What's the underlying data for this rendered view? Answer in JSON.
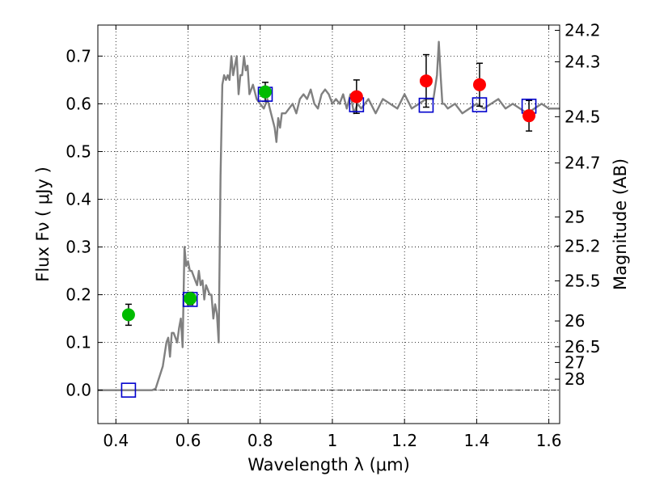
{
  "chart_data": {
    "type": "scatter",
    "xlabel": "Wavelength  λ (μm)",
    "ylabel": "Flux  Fν  ( μJy )",
    "y2label": "Magnitude (AB)",
    "xlim": [
      0.35,
      1.63
    ],
    "ylim": [
      -0.07,
      0.765
    ],
    "x_ticks": [
      {
        "value": 0.4,
        "label": "0.4"
      },
      {
        "value": 0.6,
        "label": "0.6"
      },
      {
        "value": 0.8,
        "label": "0.8"
      },
      {
        "value": 1.0,
        "label": "1"
      },
      {
        "value": 1.2,
        "label": "1.2"
      },
      {
        "value": 1.4,
        "label": "1.4"
      },
      {
        "value": 1.6,
        "label": "1.6"
      }
    ],
    "y_ticks": [
      {
        "value": 0.0,
        "label": "0.0"
      },
      {
        "value": 0.1,
        "label": "0.1"
      },
      {
        "value": 0.2,
        "label": "0.2"
      },
      {
        "value": 0.3,
        "label": "0.3"
      },
      {
        "value": 0.4,
        "label": "0.4"
      },
      {
        "value": 0.5,
        "label": "0.5"
      },
      {
        "value": 0.6,
        "label": "0.6"
      },
      {
        "value": 0.7,
        "label": "0.7"
      }
    ],
    "y2_ticks": [
      {
        "flux": 0.754,
        "label": "24.2"
      },
      {
        "flux": 0.688,
        "label": "24.3"
      },
      {
        "flux": 0.573,
        "label": "24.5"
      },
      {
        "flux": 0.476,
        "label": "24.7"
      },
      {
        "flux": 0.363,
        "label": "25"
      },
      {
        "flux": 0.302,
        "label": "25.2"
      },
      {
        "flux": 0.229,
        "label": "25.5"
      },
      {
        "flux": 0.145,
        "label": "26"
      },
      {
        "flux": 0.091,
        "label": "26.5"
      },
      {
        "flux": 0.058,
        "label": "27"
      },
      {
        "flux": 0.023,
        "label": "28"
      }
    ],
    "grid": true,
    "zero_line": true,
    "colors": {
      "template": "#808080",
      "green_points": "#00bb00",
      "red_points": "#ff0000",
      "model_squares": "#0000cc",
      "error_bars": "#000000"
    },
    "template_spectrum": {
      "x": [
        0.35,
        0.5,
        0.51,
        0.53,
        0.54,
        0.545,
        0.55,
        0.555,
        0.56,
        0.565,
        0.57,
        0.575,
        0.58,
        0.585,
        0.59,
        0.595,
        0.6,
        0.605,
        0.61,
        0.615,
        0.62,
        0.625,
        0.63,
        0.635,
        0.64,
        0.645,
        0.65,
        0.655,
        0.66,
        0.665,
        0.67,
        0.675,
        0.68,
        0.685,
        0.69,
        0.695,
        0.7,
        0.705,
        0.71,
        0.715,
        0.72,
        0.725,
        0.73,
        0.735,
        0.74,
        0.745,
        0.75,
        0.755,
        0.76,
        0.765,
        0.77,
        0.78,
        0.79,
        0.8,
        0.81,
        0.82,
        0.83,
        0.84,
        0.845,
        0.85,
        0.855,
        0.86,
        0.87,
        0.88,
        0.89,
        0.9,
        0.91,
        0.92,
        0.93,
        0.94,
        0.95,
        0.96,
        0.97,
        0.98,
        0.99,
        1.0,
        1.01,
        1.02,
        1.03,
        1.04,
        1.05,
        1.06,
        1.07,
        1.08,
        1.09,
        1.1,
        1.12,
        1.14,
        1.16,
        1.18,
        1.2,
        1.22,
        1.24,
        1.26,
        1.28,
        1.29,
        1.295,
        1.3,
        1.305,
        1.31,
        1.32,
        1.34,
        1.36,
        1.38,
        1.4,
        1.42,
        1.44,
        1.46,
        1.48,
        1.5,
        1.52,
        1.54,
        1.56,
        1.58,
        1.6,
        1.62,
        1.63
      ],
      "y": [
        0.0,
        0.0,
        0.003,
        0.05,
        0.1,
        0.11,
        0.07,
        0.12,
        0.12,
        0.11,
        0.1,
        0.13,
        0.15,
        0.09,
        0.3,
        0.26,
        0.27,
        0.25,
        0.25,
        0.24,
        0.23,
        0.22,
        0.25,
        0.22,
        0.23,
        0.19,
        0.22,
        0.21,
        0.2,
        0.2,
        0.15,
        0.18,
        0.16,
        0.1,
        0.45,
        0.64,
        0.66,
        0.65,
        0.66,
        0.65,
        0.7,
        0.66,
        0.68,
        0.7,
        0.62,
        0.66,
        0.66,
        0.7,
        0.67,
        0.68,
        0.62,
        0.64,
        0.61,
        0.6,
        0.59,
        0.61,
        0.58,
        0.55,
        0.52,
        0.57,
        0.55,
        0.58,
        0.58,
        0.59,
        0.6,
        0.58,
        0.61,
        0.62,
        0.61,
        0.63,
        0.6,
        0.59,
        0.62,
        0.63,
        0.62,
        0.6,
        0.61,
        0.6,
        0.62,
        0.59,
        0.62,
        0.58,
        0.6,
        0.59,
        0.6,
        0.61,
        0.58,
        0.61,
        0.6,
        0.59,
        0.62,
        0.59,
        0.6,
        0.61,
        0.61,
        0.66,
        0.73,
        0.66,
        0.6,
        0.6,
        0.59,
        0.6,
        0.58,
        0.59,
        0.6,
        0.59,
        0.6,
        0.61,
        0.59,
        0.6,
        0.59,
        0.58,
        0.59,
        0.6,
        0.59,
        0.59,
        0.59
      ]
    },
    "series": [
      {
        "marker": "circle",
        "color_key": "green_points",
        "points": [
          {
            "x": 0.435,
            "y": 0.158,
            "yerr": 0.022
          },
          {
            "x": 0.606,
            "y": 0.192,
            "yerr": 0.013
          },
          {
            "x": 0.814,
            "y": 0.625,
            "yerr": 0.02
          }
        ]
      },
      {
        "marker": "circle",
        "color_key": "red_points",
        "points": [
          {
            "x": 1.067,
            "y": 0.615,
            "yerr": 0.035
          },
          {
            "x": 1.26,
            "y": 0.648,
            "yerr": 0.055
          },
          {
            "x": 1.408,
            "y": 0.64,
            "yerr": 0.045
          },
          {
            "x": 1.545,
            "y": 0.575,
            "yerr": 0.032
          }
        ]
      },
      {
        "marker": "square",
        "color_key": "model_squares",
        "points": [
          {
            "x": 0.435,
            "y": 0.0
          },
          {
            "x": 0.606,
            "y": 0.19
          },
          {
            "x": 0.814,
            "y": 0.62
          },
          {
            "x": 1.067,
            "y": 0.598
          },
          {
            "x": 1.26,
            "y": 0.597
          },
          {
            "x": 1.408,
            "y": 0.598
          },
          {
            "x": 1.545,
            "y": 0.595
          }
        ]
      }
    ]
  }
}
